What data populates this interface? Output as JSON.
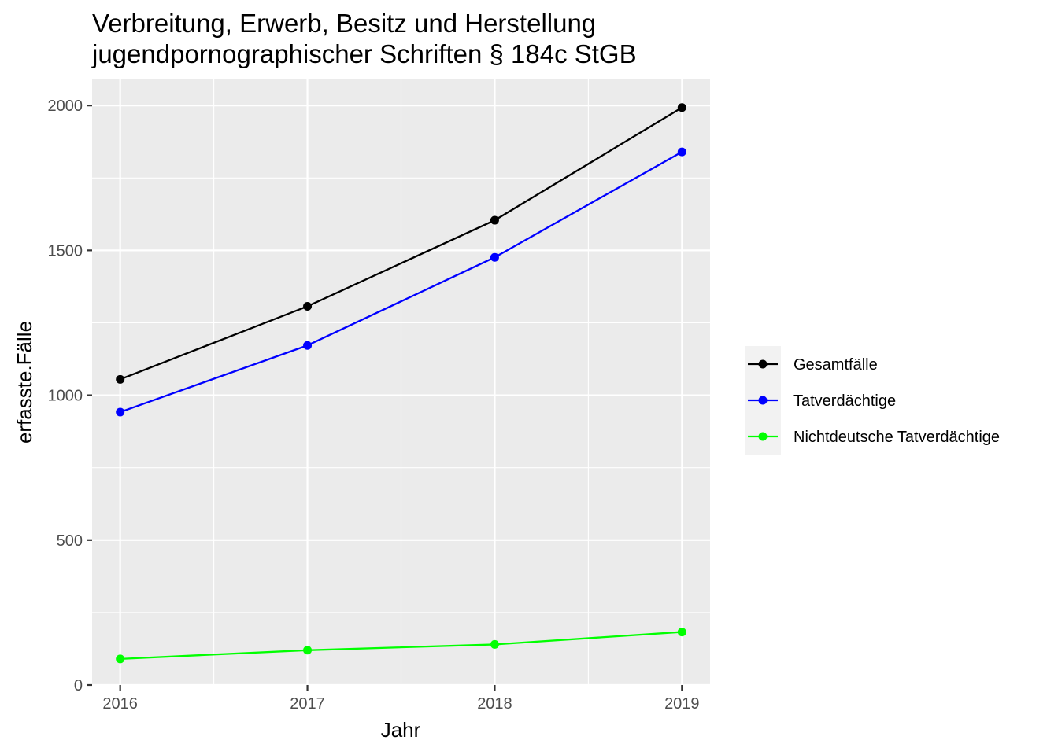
{
  "chart_data": {
    "type": "line",
    "title": "Verbreitung, Erwerb, Besitz und Herstellung",
    "subtitle": "jugendpornographischer Schriften § 184c StGB",
    "xlabel": "Jahr",
    "ylabel": "erfasste.Fälle",
    "x": [
      2016,
      2017,
      2018,
      2019
    ],
    "x_tick_labels": [
      "2016",
      "2017",
      "2018",
      "2019"
    ],
    "y_ticks": [
      0,
      500,
      1000,
      1500,
      2000
    ],
    "y_tick_labels": [
      "0",
      "500",
      "1000",
      "1500",
      "2000"
    ],
    "xlim": [
      2015.85,
      2019.15
    ],
    "ylim": [
      0,
      2090
    ],
    "grid": true,
    "legend_position": "right",
    "panel_background": "#ebebeb",
    "gridline_color": "#ffffff",
    "series": [
      {
        "name": "Gesamtfälle",
        "color": "#000000",
        "values": [
          1055,
          1307,
          1604,
          1993
        ]
      },
      {
        "name": "Tatverdächtige",
        "color": "#0000ff",
        "values": [
          942,
          1172,
          1476,
          1840
        ]
      },
      {
        "name": "Nichtdeutsche Tatverdächtige",
        "color": "#00ff00",
        "values": [
          90,
          120,
          140,
          183
        ]
      }
    ]
  }
}
